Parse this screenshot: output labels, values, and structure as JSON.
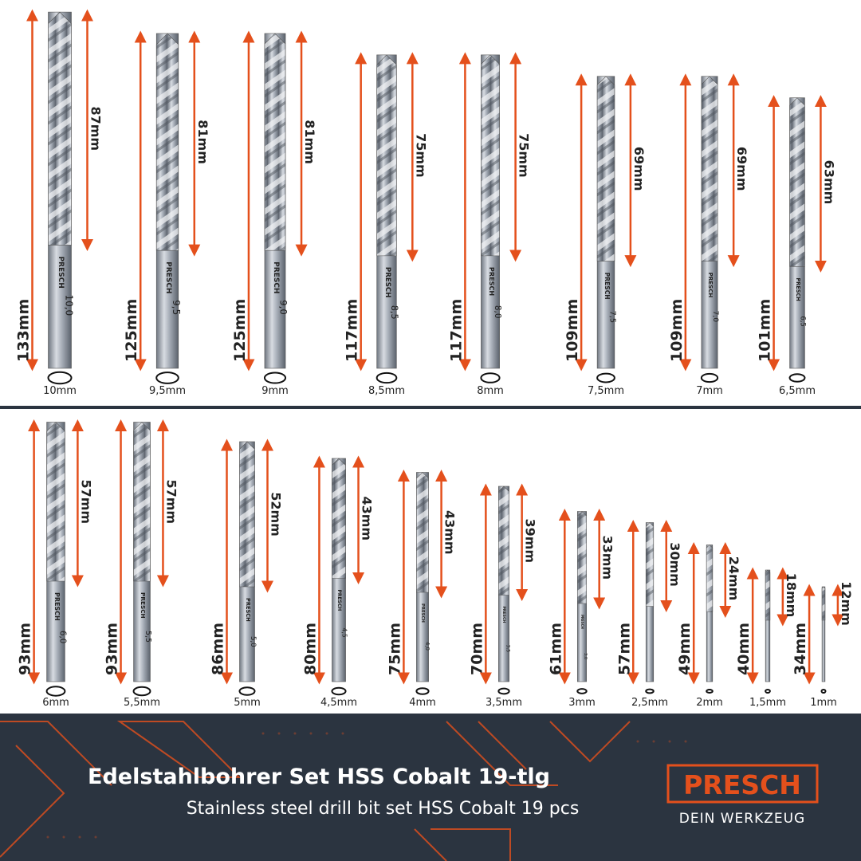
{
  "shank_brand": "PRESCH",
  "top_row": {
    "bits": [
      {
        "diameter": {
          "value": 10,
          "label": "10mm"
        },
        "total_length": {
          "value": 133,
          "label": "133mm"
        },
        "flute_length": {
          "value": 87,
          "label": "87mm"
        },
        "shank_text": "10,0"
      },
      {
        "diameter": {
          "value": 9.5,
          "label": "9,5mm"
        },
        "total_length": {
          "value": 125,
          "label": "125mm"
        },
        "flute_length": {
          "value": 81,
          "label": "81mm"
        },
        "shank_text": "9,5"
      },
      {
        "diameter": {
          "value": 9,
          "label": "9mm"
        },
        "total_length": {
          "value": 125,
          "label": "125mm"
        },
        "flute_length": {
          "value": 81,
          "label": "81mm"
        },
        "shank_text": "9,0"
      },
      {
        "diameter": {
          "value": 8.5,
          "label": "8,5mm"
        },
        "total_length": {
          "value": 117,
          "label": "117mm"
        },
        "flute_length": {
          "value": 75,
          "label": "75mm"
        },
        "shank_text": "8,5"
      },
      {
        "diameter": {
          "value": 8,
          "label": "8mm"
        },
        "total_length": {
          "value": 117,
          "label": "117mm"
        },
        "flute_length": {
          "value": 75,
          "label": "75mm"
        },
        "shank_text": "8,0"
      },
      {
        "diameter": {
          "value": 7.5,
          "label": "7,5mm"
        },
        "total_length": {
          "value": 109,
          "label": "109mm"
        },
        "flute_length": {
          "value": 69,
          "label": "69mm"
        },
        "shank_text": "7,5"
      },
      {
        "diameter": {
          "value": 7,
          "label": "7mm"
        },
        "total_length": {
          "value": 109,
          "label": "109mm"
        },
        "flute_length": {
          "value": 69,
          "label": "69mm"
        },
        "shank_text": "7,0"
      },
      {
        "diameter": {
          "value": 6.5,
          "label": "6,5mm"
        },
        "total_length": {
          "value": 101,
          "label": "101mm"
        },
        "flute_length": {
          "value": 63,
          "label": "63mm"
        },
        "shank_text": "6,5"
      }
    ]
  },
  "bottom_row": {
    "bits": [
      {
        "diameter": {
          "value": 6,
          "label": "6mm"
        },
        "total_length": {
          "value": 93,
          "label": "93mm"
        },
        "flute_length": {
          "value": 57,
          "label": "57mm"
        },
        "shank_text": "6,0"
      },
      {
        "diameter": {
          "value": 5.5,
          "label": "5,5mm"
        },
        "total_length": {
          "value": 93,
          "label": "93mm"
        },
        "flute_length": {
          "value": 57,
          "label": "57mm"
        },
        "shank_text": "5,5"
      },
      {
        "diameter": {
          "value": 5,
          "label": "5mm"
        },
        "total_length": {
          "value": 86,
          "label": "86mm"
        },
        "flute_length": {
          "value": 52,
          "label": "52mm"
        },
        "shank_text": "5,0"
      },
      {
        "diameter": {
          "value": 4.5,
          "label": "4,5mm"
        },
        "total_length": {
          "value": 80,
          "label": "80mm"
        },
        "flute_length": {
          "value": 43,
          "label": "43mm"
        },
        "shank_text": "4,5"
      },
      {
        "diameter": {
          "value": 4,
          "label": "4mm"
        },
        "total_length": {
          "value": 75,
          "label": "75mm"
        },
        "flute_length": {
          "value": 43,
          "label": "43mm"
        },
        "shank_text": "4,0"
      },
      {
        "diameter": {
          "value": 3.5,
          "label": "3,5mm"
        },
        "total_length": {
          "value": 70,
          "label": "70mm"
        },
        "flute_length": {
          "value": 39,
          "label": "39mm"
        },
        "shank_text": "3,5"
      },
      {
        "diameter": {
          "value": 3,
          "label": "3mm"
        },
        "total_length": {
          "value": 61,
          "label": "61mm"
        },
        "flute_length": {
          "value": 33,
          "label": "33mm"
        },
        "shank_text": "3,0"
      },
      {
        "diameter": {
          "value": 2.5,
          "label": "2,5mm"
        },
        "total_length": {
          "value": 57,
          "label": "57mm"
        },
        "flute_length": {
          "value": 30,
          "label": "30mm"
        }
      },
      {
        "diameter": {
          "value": 2,
          "label": "2mm"
        },
        "total_length": {
          "value": 49,
          "label": "49mm"
        },
        "flute_length": {
          "value": 24,
          "label": "24mm"
        }
      },
      {
        "diameter": {
          "value": 1.5,
          "label": "1,5mm"
        },
        "total_length": {
          "value": 40,
          "label": "40mm"
        },
        "flute_length": {
          "value": 18,
          "label": "18mm"
        }
      },
      {
        "diameter": {
          "value": 1,
          "label": "1mm"
        },
        "total_length": {
          "value": 34,
          "label": "34mm"
        },
        "flute_length": {
          "value": 12,
          "label": "12mm"
        }
      }
    ]
  },
  "banner": {
    "title": "Edelstahlbohrer Set HSS Cobalt 19-tlg",
    "subtitle": "Stainless steel drill bit set HSS Cobalt 19 pcs",
    "logo": "PRESCH",
    "tagline": "DEIN WERKZEUG"
  }
}
